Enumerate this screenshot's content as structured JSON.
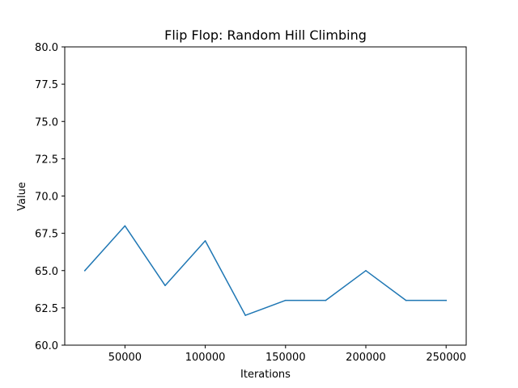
{
  "chart_data": {
    "type": "line",
    "title": "Flip Flop: Random Hill Climbing",
    "xlabel": "Iterations",
    "ylabel": "Value",
    "xlim": [
      12500,
      262500
    ],
    "ylim": [
      60,
      80
    ],
    "x_ticks": [
      50000,
      100000,
      150000,
      200000,
      250000
    ],
    "x_tick_labels": [
      "50000",
      "100000",
      "150000",
      "200000",
      "250000"
    ],
    "y_ticks": [
      60,
      62.5,
      65,
      67.5,
      70,
      72.5,
      75,
      77.5,
      80
    ],
    "y_tick_labels": [
      "60.0",
      "62.5",
      "65.0",
      "67.5",
      "70.0",
      "72.5",
      "75.0",
      "77.5",
      "80.0"
    ],
    "grid": false,
    "legend": "none",
    "series": [
      {
        "color": "#1f77b4",
        "x": [
          25000,
          50000,
          75000,
          100000,
          125000,
          150000,
          175000,
          200000,
          225000,
          250000
        ],
        "y": [
          65,
          68,
          64,
          67,
          62,
          63,
          63,
          65,
          63,
          63
        ]
      }
    ]
  }
}
